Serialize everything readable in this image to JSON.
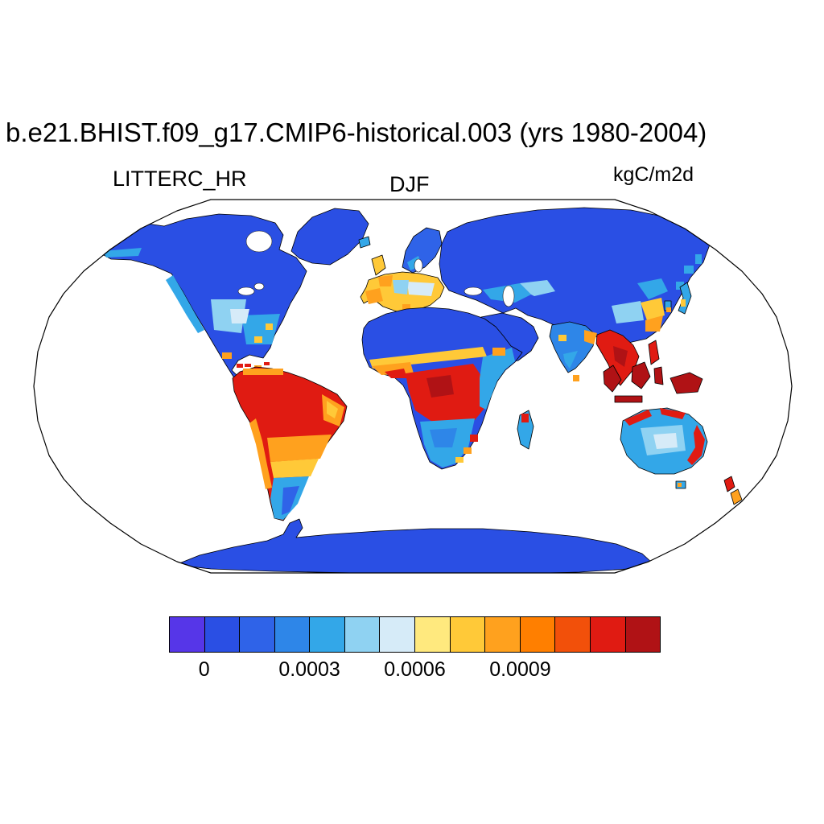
{
  "page": {
    "background": "#ffffff",
    "ocean_color": "#ffffff"
  },
  "header": {
    "title": "b.e21.BHIST.f09_g17.CMIP6-historical.003 (yrs 1980-2004)",
    "variable_label": "LITTERC_HR",
    "season_label": "DJF",
    "units_label": "kgC/m2d"
  },
  "chart_data": {
    "type": "heatmap",
    "subtype": "global-map",
    "projection": "Robinson",
    "title": "b.e21.BHIST.f09_g17.CMIP6-historical.003 (yrs 1980-2004)",
    "variable": "LITTERC_HR",
    "season": "DJF",
    "units": "kgC/m2d",
    "legend_position": "bottom",
    "colorbar": {
      "orientation": "horizontal",
      "cell_count": 14,
      "levels": [
        -0.0001,
        0,
        0.0001,
        0.0002,
        0.0003,
        0.0004,
        0.0005,
        0.0006,
        0.0007,
        0.0008,
        0.0009,
        0.001,
        0.0011,
        0.0012,
        0.0013
      ],
      "colors": [
        "#5636e8",
        "#2a4fe4",
        "#2f63e8",
        "#2e86e8",
        "#33a7e8",
        "#8fd2f2",
        "#d6ebf8",
        "#ffe97e",
        "#ffc938",
        "#ffa11e",
        "#ff7f00",
        "#f2500a",
        "#e01b12",
        "#b01215"
      ],
      "ticks": [
        {
          "label": "0",
          "boundary_index": 1
        },
        {
          "label": "0.0003",
          "boundary_index": 4
        },
        {
          "label": "0.0006",
          "boundary_index": 7
        },
        {
          "label": "0.0009",
          "boundary_index": 10
        }
      ]
    },
    "regions_approx": [
      {
        "region": "Amazon Basin",
        "value_kgC_m2d": 0.0012
      },
      {
        "region": "Congo Basin",
        "value_kgC_m2d": 0.0012
      },
      {
        "region": "Maritime Continent (Indonesia / New Guinea)",
        "value_kgC_m2d": 0.0013
      },
      {
        "region": "Southeast Asia",
        "value_kgC_m2d": 0.0012
      },
      {
        "region": "Northern Australia coast",
        "value_kgC_m2d": 0.0012
      },
      {
        "region": "Central Australia",
        "value_kgC_m2d": 0.0005
      },
      {
        "region": "Sahara",
        "value_kgC_m2d": 0.0001
      },
      {
        "region": "Arabian Peninsula",
        "value_kgC_m2d": 0.0001
      },
      {
        "region": "Boreal Canada / Alaska",
        "value_kgC_m2d": 0.0001
      },
      {
        "region": "Siberia",
        "value_kgC_m2d": 0.0001
      },
      {
        "region": "Western Europe",
        "value_kgC_m2d": 0.0007
      },
      {
        "region": "Central and Eastern Europe",
        "value_kgC_m2d": 0.0004
      },
      {
        "region": "Southeastern USA",
        "value_kgC_m2d": 0.0004
      },
      {
        "region": "Sahel / West Africa coast",
        "value_kgC_m2d": 0.0008
      },
      {
        "region": "East Africa",
        "value_kgC_m2d": 0.0004
      },
      {
        "region": "Southern Africa",
        "value_kgC_m2d": 0.0004
      },
      {
        "region": "Madagascar",
        "value_kgC_m2d": 0.0008
      },
      {
        "region": "India",
        "value_kgC_m2d": 0.0002
      },
      {
        "region": "Eastern China",
        "value_kgC_m2d": 0.0007
      },
      {
        "region": "Japan",
        "value_kgC_m2d": 0.0005
      },
      {
        "region": "New Zealand",
        "value_kgC_m2d": 0.001
      },
      {
        "region": "Patagonia",
        "value_kgC_m2d": 0.0004
      },
      {
        "region": "Antarctica",
        "value_kgC_m2d": 0.0001
      }
    ]
  }
}
